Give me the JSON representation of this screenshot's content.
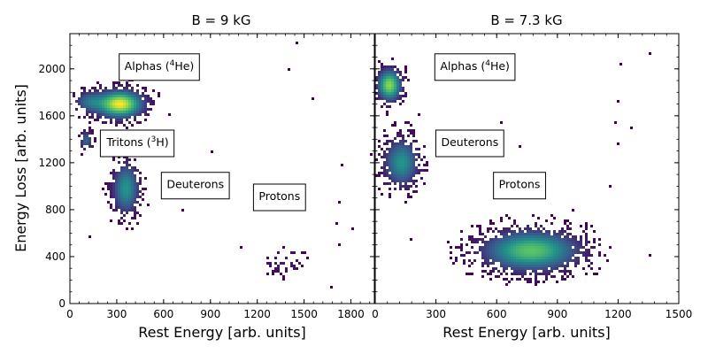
{
  "chart_data": [
    {
      "type": "heatmap",
      "title": "B = 9 kG",
      "xlabel": "Rest Energy [arb. units]",
      "ylabel": "Energy Loss [arb. units]",
      "xlim": [
        0,
        1950
      ],
      "ylim": [
        0,
        2300
      ],
      "x_ticks": [
        0,
        300,
        600,
        900,
        1200,
        1500,
        1800
      ],
      "y_ticks": [
        0,
        400,
        800,
        1200,
        1600,
        2000
      ],
      "colormap": [
        "#440154",
        "#3b528b",
        "#21918c",
        "#5ec962",
        "#fde725"
      ],
      "clusters": [
        {
          "name": "Alphas",
          "x": 320,
          "y": 1700,
          "sx": 95,
          "sy": 75,
          "weight": 1.0
        },
        {
          "name": "Alphas-tail",
          "x": 120,
          "y": 1720,
          "sx": 60,
          "sy": 60,
          "weight": 0.35
        },
        {
          "name": "Tritons",
          "x": 105,
          "y": 1390,
          "sx": 28,
          "sy": 55,
          "weight": 0.35
        },
        {
          "name": "Deuterons",
          "x": 360,
          "y": 980,
          "sx": 55,
          "sy": 140,
          "weight": 0.55
        },
        {
          "name": "Protons",
          "x": 1370,
          "y": 350,
          "sx": 80,
          "sy": 70,
          "weight": 0.12
        }
      ],
      "annotations": [
        {
          "label": "Alphas (",
          "sup": "4",
          "suffix": "He)",
          "x": 310,
          "y": 2030
        },
        {
          "label": "Tritons (",
          "sup": "3",
          "suffix": "H)",
          "x": 195,
          "y": 1380
        },
        {
          "label": "Deuterons",
          "x": 580,
          "y": 1020
        },
        {
          "label": "Protons",
          "x": 1170,
          "y": 920
        }
      ]
    },
    {
      "type": "heatmap",
      "title": "B = 7.3 kG",
      "xlabel": "Rest Energy [arb. units]",
      "ylabel": "",
      "xlim": [
        0,
        1500
      ],
      "ylim": [
        0,
        2300
      ],
      "x_ticks": [
        0,
        300,
        600,
        900,
        1200,
        1500
      ],
      "y_ticks": [
        0,
        400,
        800,
        1200,
        1600,
        2000
      ],
      "colormap": [
        "#440154",
        "#3b528b",
        "#21918c",
        "#5ec962",
        "#fde725"
      ],
      "clusters": [
        {
          "name": "Alphas",
          "x": 70,
          "y": 1860,
          "sx": 38,
          "sy": 85,
          "weight": 0.85
        },
        {
          "name": "Deuterons",
          "x": 130,
          "y": 1200,
          "sx": 55,
          "sy": 130,
          "weight": 0.55
        },
        {
          "name": "Protons",
          "x": 770,
          "y": 450,
          "sx": 150,
          "sy": 110,
          "weight": 0.75
        }
      ],
      "annotations": [
        {
          "label": "Alphas (",
          "sup": "4",
          "suffix": "He)",
          "x": 290,
          "y": 2030
        },
        {
          "label": "Deuterons",
          "x": 295,
          "y": 1380
        },
        {
          "label": "Protons",
          "x": 580,
          "y": 1020
        }
      ]
    }
  ]
}
